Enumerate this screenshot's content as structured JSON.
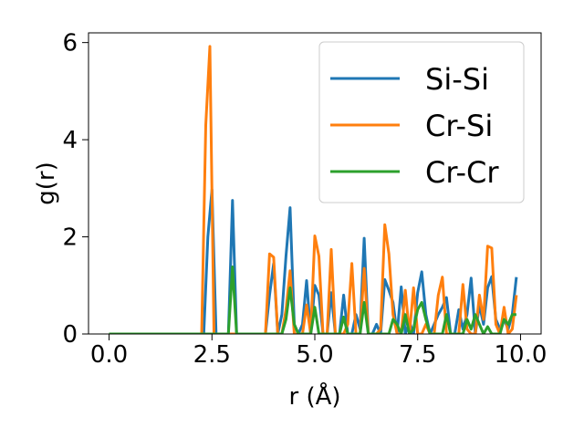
{
  "chart_data": {
    "type": "line",
    "title": "",
    "xlabel": "r (Å)",
    "ylabel": "g(r)",
    "xlim": [
      -0.5,
      10.5
    ],
    "ylim": [
      0,
      6.2
    ],
    "xticks": [
      0.0,
      2.5,
      5.0,
      7.5,
      10.0
    ],
    "xtick_labels": [
      "0.0",
      "2.5",
      "5.0",
      "7.5",
      "10.0"
    ],
    "yticks": [
      0,
      2,
      4,
      6
    ],
    "ytick_labels": [
      "0",
      "2",
      "4",
      "6"
    ],
    "grid": false,
    "legend_position": "top-right",
    "series": [
      {
        "name": "Si-Si",
        "color": "#1f77b4",
        "x": [
          0.0,
          2.3,
          2.4,
          2.5,
          2.6,
          2.9,
          3.0,
          3.1,
          3.8,
          3.9,
          4.0,
          4.1,
          4.2,
          4.3,
          4.4,
          4.5,
          4.6,
          4.7,
          4.8,
          4.9,
          5.0,
          5.1,
          5.2,
          5.3,
          5.4,
          5.5,
          5.6,
          5.7,
          5.8,
          5.9,
          6.0,
          6.1,
          6.2,
          6.3,
          6.4,
          6.5,
          6.6,
          6.7,
          6.8,
          6.9,
          7.0,
          7.1,
          7.2,
          7.3,
          7.4,
          7.5,
          7.6,
          7.7,
          7.8,
          7.9,
          8.0,
          8.1,
          8.2,
          8.3,
          8.4,
          8.5,
          8.6,
          8.7,
          8.8,
          8.9,
          9.0,
          9.1,
          9.2,
          9.3,
          9.4,
          9.5,
          9.6,
          9.7,
          9.8,
          9.9
        ],
        "y": [
          0,
          0,
          2.0,
          2.97,
          0,
          0,
          2.75,
          0,
          0,
          0.8,
          1.45,
          0,
          0.4,
          1.6,
          2.6,
          0.2,
          0,
          0.2,
          1.1,
          0,
          1.0,
          0.8,
          0,
          0,
          0.85,
          0,
          0,
          0.8,
          0,
          0,
          0.4,
          0.1,
          1.97,
          0,
          0,
          0.2,
          0,
          1.12,
          0.9,
          0.65,
          0,
          0.97,
          0,
          0.25,
          0,
          0.85,
          1.28,
          0.4,
          0,
          0.2,
          0.4,
          0.55,
          0.75,
          0,
          0,
          0.5,
          0.1,
          0.4,
          1.15,
          0,
          0.6,
          0.2,
          0.95,
          1.18,
          0.3,
          0.1,
          0.3,
          0.1,
          0.4,
          1.17
        ]
      },
      {
        "name": "Cr-Si",
        "color": "#ff7f0e",
        "x": [
          0.0,
          2.25,
          2.35,
          2.45,
          2.55,
          2.65,
          3.8,
          3.9,
          4.0,
          4.1,
          4.2,
          4.3,
          4.4,
          4.5,
          4.6,
          4.7,
          4.8,
          4.9,
          5.0,
          5.1,
          5.2,
          5.3,
          5.4,
          5.5,
          5.6,
          5.7,
          5.8,
          5.9,
          6.0,
          6.1,
          6.2,
          6.3,
          6.4,
          6.5,
          6.6,
          6.7,
          6.8,
          6.9,
          7.0,
          7.1,
          7.2,
          7.3,
          7.4,
          7.5,
          7.6,
          7.7,
          7.8,
          7.9,
          8.0,
          8.1,
          8.2,
          8.3,
          8.4,
          8.5,
          8.6,
          8.7,
          8.8,
          8.9,
          9.0,
          9.1,
          9.2,
          9.3,
          9.4,
          9.5,
          9.6,
          9.7,
          9.8,
          9.9
        ],
        "y": [
          0,
          0,
          4.3,
          5.92,
          0,
          0,
          0,
          1.65,
          1.58,
          0,
          0,
          0.5,
          1.3,
          0,
          0,
          0,
          0.6,
          0,
          2.02,
          1.6,
          0,
          0,
          1.74,
          0,
          0,
          0,
          0.2,
          1.45,
          0,
          0,
          1.35,
          0,
          0,
          0,
          0.1,
          2.25,
          1.65,
          0.4,
          0,
          0,
          0.9,
          0,
          0.95,
          0,
          0,
          0.2,
          0,
          0,
          0.8,
          1.17,
          0,
          0,
          0,
          0,
          1.02,
          0.1,
          0,
          0,
          0.8,
          0.3,
          1.81,
          1.77,
          0.2,
          0,
          0.55,
          0,
          0.1,
          0.8
        ]
      },
      {
        "name": "Cr-Cr",
        "color": "#2ca02c",
        "x": [
          0.0,
          2.9,
          3.0,
          3.1,
          4.2,
          4.3,
          4.4,
          4.5,
          4.6,
          4.9,
          5.0,
          5.1,
          5.6,
          5.7,
          5.8,
          6.1,
          6.2,
          6.3,
          6.8,
          6.9,
          7.0,
          7.1,
          7.2,
          7.3,
          7.4,
          7.5,
          7.6,
          7.7,
          7.8,
          8.1,
          8.2,
          8.3,
          8.6,
          8.7,
          8.8,
          8.9,
          9.0,
          9.1,
          9.2,
          9.3,
          9.5,
          9.6,
          9.7,
          9.8,
          9.9
        ],
        "y": [
          0,
          0,
          1.38,
          0,
          0,
          0.3,
          0.95,
          0.2,
          0,
          0,
          0.55,
          0,
          0,
          0.35,
          0,
          0,
          0.65,
          0,
          0,
          0.3,
          0.2,
          0,
          0.4,
          0,
          0.1,
          0.5,
          0.65,
          0.3,
          0,
          0,
          0.4,
          0,
          0,
          0.3,
          0.1,
          0.4,
          0.2,
          0,
          0.15,
          0,
          0,
          0.3,
          0.2,
          0.4,
          0.4
        ]
      }
    ]
  }
}
